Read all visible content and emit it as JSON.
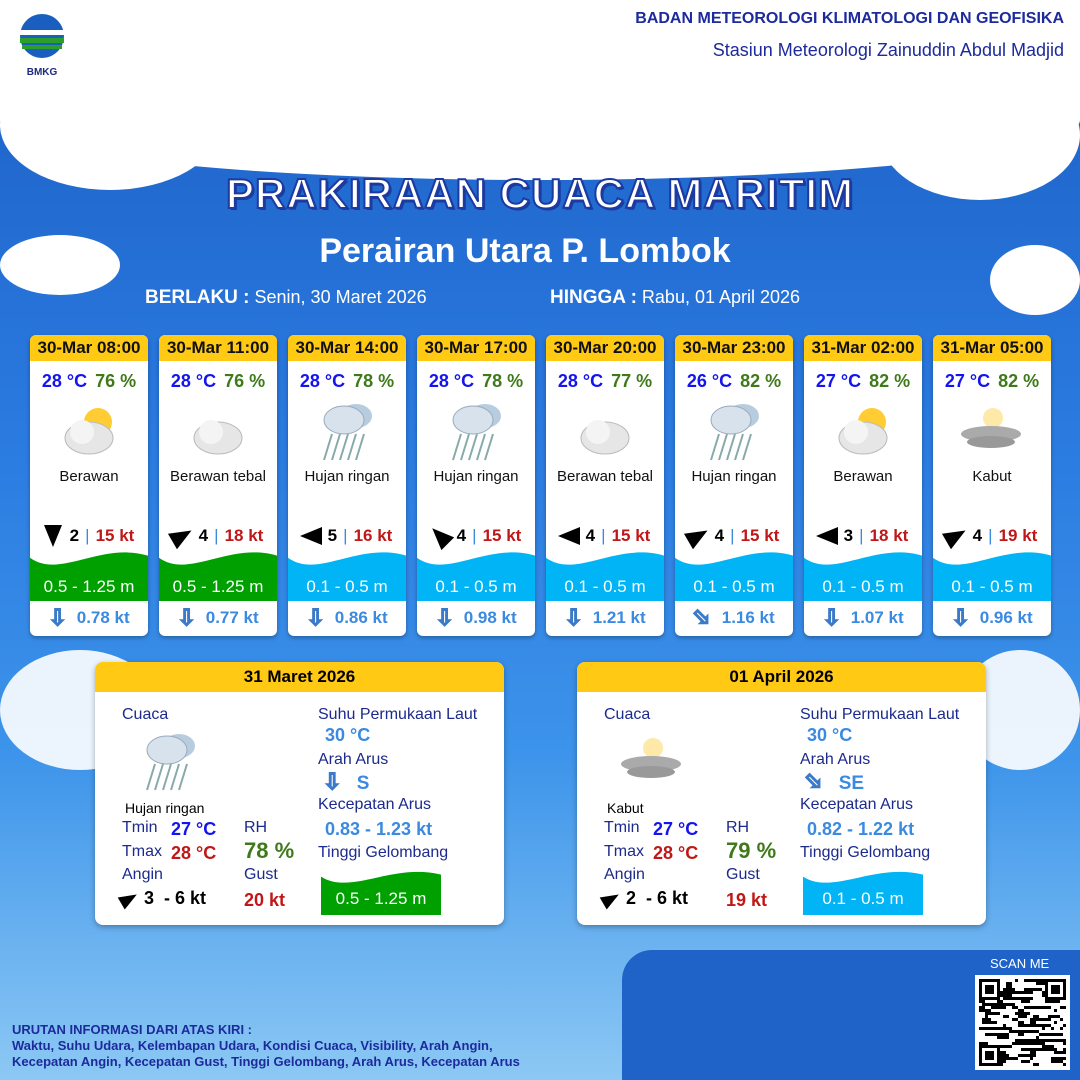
{
  "header": {
    "logo_text": "BMKG",
    "agency": "BADAN METEOROLOGI KLIMATOLOGI DAN GEOFISIKA",
    "station": "Stasiun Meteorologi Zainuddin Abdul Madjid"
  },
  "title": "PRAKIRAAN CUACA MARITIM",
  "subtitle": "Perairan Utara P. Lombok",
  "validity": {
    "from_label": "BERLAKU :",
    "from": "Senin, 30 Maret 2026",
    "to_label": "HINGGA :",
    "to": "Rabu, 01 April 2026"
  },
  "colors": {
    "header_yellow": "#ffc914",
    "wave_green": "#00a000",
    "wave_blue": "#00b4f5",
    "temp": "#1414f0",
    "rh": "#3f7a1a",
    "gust": "#c01818"
  },
  "forecasts": [
    {
      "time": "30-Mar 08:00",
      "temp": "28 °C",
      "rh": "76 %",
      "icon": "partly-cloudy-icon",
      "cond": "Berawan",
      "wind_dir_deg": 180,
      "wind": "2",
      "gust": "15 kt",
      "wave": "0.5 - 1.25 m",
      "wave_class": "green",
      "cur_dir_deg": 180,
      "current": "0.78 kt"
    },
    {
      "time": "30-Mar 11:00",
      "temp": "28 °C",
      "rh": "76 %",
      "icon": "cloud-icon",
      "cond": "Berawan tebal",
      "wind_dir_deg": 60,
      "wind": "4",
      "gust": "18 kt",
      "wave": "0.5 - 1.25 m",
      "wave_class": "green",
      "cur_dir_deg": 180,
      "current": "0.77 kt"
    },
    {
      "time": "30-Mar 14:00",
      "temp": "28 °C",
      "rh": "78 %",
      "icon": "rain-icon",
      "cond": "Hujan ringan",
      "wind_dir_deg": 270,
      "wind": "5",
      "gust": "16 kt",
      "wave": "0.1 - 0.5 m",
      "wave_class": "blue",
      "cur_dir_deg": 180,
      "current": "0.86 kt"
    },
    {
      "time": "30-Mar 17:00",
      "temp": "28 °C",
      "rh": "78 %",
      "icon": "rain-icon",
      "cond": "Hujan ringan",
      "wind_dir_deg": 315,
      "wind": "4",
      "gust": "15 kt",
      "wave": "0.1 - 0.5 m",
      "wave_class": "blue",
      "cur_dir_deg": 180,
      "current": "0.98 kt"
    },
    {
      "time": "30-Mar 20:00",
      "temp": "28 °C",
      "rh": "77 %",
      "icon": "cloud-icon",
      "cond": "Berawan tebal",
      "wind_dir_deg": 270,
      "wind": "4",
      "gust": "15 kt",
      "wave": "0.1 - 0.5 m",
      "wave_class": "blue",
      "cur_dir_deg": 180,
      "current": "1.21 kt"
    },
    {
      "time": "30-Mar 23:00",
      "temp": "26 °C",
      "rh": "82 %",
      "icon": "rain-icon",
      "cond": "Hujan ringan",
      "wind_dir_deg": 60,
      "wind": "4",
      "gust": "15 kt",
      "wave": "0.1 - 0.5 m",
      "wave_class": "blue",
      "cur_dir_deg": 135,
      "current": "1.16 kt"
    },
    {
      "time": "31-Mar 02:00",
      "temp": "27 °C",
      "rh": "82 %",
      "icon": "partly-cloudy-icon",
      "cond": "Berawan",
      "wind_dir_deg": 270,
      "wind": "3",
      "gust": "18 kt",
      "wave": "0.1 - 0.5 m",
      "wave_class": "blue",
      "cur_dir_deg": 180,
      "current": "1.07 kt"
    },
    {
      "time": "31-Mar 05:00",
      "temp": "27 °C",
      "rh": "82 %",
      "icon": "fog-icon",
      "cond": "Kabut",
      "wind_dir_deg": 60,
      "wind": "4",
      "gust": "19 kt",
      "wave": "0.1 - 0.5 m",
      "wave_class": "blue",
      "cur_dir_deg": 180,
      "current": "0.96 kt"
    }
  ],
  "labels": {
    "cuaca": "Cuaca",
    "sst": "Suhu Permukaan Laut",
    "arah_arus": "Arah Arus",
    "kec_arus": "Kecepatan Arus",
    "tinggi": "Tinggi Gelombang",
    "tmin": "Tmin",
    "tmax": "Tmax",
    "rh": "RH",
    "angin": "Angin",
    "gust": "Gust"
  },
  "daily": [
    {
      "date": "31 Maret 2026",
      "icon": "rain-icon",
      "cond": "Hujan ringan",
      "tmin": "27 °C",
      "tmax": "28 °C",
      "rh": "78 %",
      "wind_dir_deg": 60,
      "wind": "3  - 6 kt",
      "gust": "20 kt",
      "sst": "30 °C",
      "cur_dir_deg": 180,
      "cur_dir": "S",
      "cur_speed": "0.83 - 1.23 kt",
      "wave": "0.5 - 1.25 m",
      "wave_class": "green"
    },
    {
      "date": "01 April 2026",
      "icon": "fog-icon",
      "cond": "Kabut",
      "tmin": "27 °C",
      "tmax": "28 °C",
      "rh": "79 %",
      "wind_dir_deg": 60,
      "wind": "2  - 6 kt",
      "gust": "19 kt",
      "sst": "30 °C",
      "cur_dir_deg": 135,
      "cur_dir": "SE",
      "cur_speed": "0.82 - 1.22 kt",
      "wave": "0.1 - 0.5 m",
      "wave_class": "blue"
    }
  ],
  "footer": {
    "title": "URUTAN INFORMASI DARI ATAS KIRI :",
    "line1": "Waktu, Suhu Udara, Kelembapan Udara, Kondisi Cuaca, Visibility, Arah Angin,",
    "line2": "Kecepatan Angin, Kecepatan Gust, Tinggi Gelombang, Arah Arus, Kecepatan Arus"
  },
  "qr": {
    "label": "SCAN ME"
  }
}
